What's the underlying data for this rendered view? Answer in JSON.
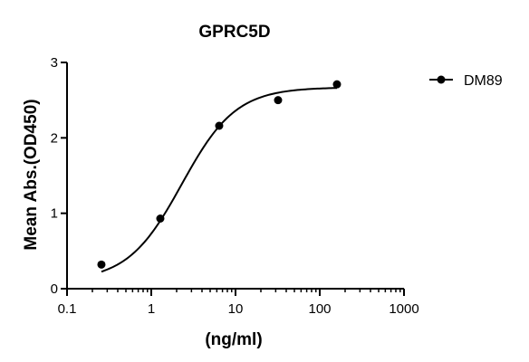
{
  "chart_data": {
    "type": "scatter",
    "title": "GPRC5D",
    "xlabel": "(ng/ml)",
    "ylabel": "Mean Abs.(OD450)",
    "x_scale": "log",
    "xlim": [
      0.1,
      1000
    ],
    "ylim": [
      0,
      3
    ],
    "x_ticks": [
      0.1,
      1,
      10,
      100,
      1000
    ],
    "x_tick_labels": [
      "0.1",
      "1",
      "10",
      "100",
      "1000"
    ],
    "y_ticks": [
      0,
      1,
      2,
      3
    ],
    "y_tick_labels": [
      "0",
      "1",
      "2",
      "3"
    ],
    "grid": false,
    "legend_position": "top-right",
    "series": [
      {
        "name": "DM89",
        "color": "#000000",
        "marker": "filled-circle",
        "fit": "four-parameter logistic curve",
        "x": [
          0.256,
          1.28,
          6.4,
          32,
          160
        ],
        "y": [
          0.32,
          0.93,
          2.16,
          2.5,
          2.71
        ]
      }
    ]
  }
}
